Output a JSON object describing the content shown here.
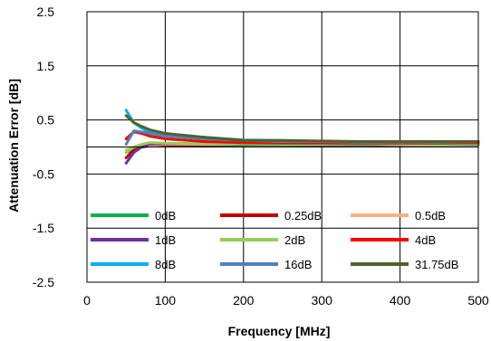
{
  "chart_data": {
    "type": "line",
    "xlabel": "Frequency [MHz]",
    "ylabel": "Attenuation Error [dB]",
    "xlim": [
      0,
      500
    ],
    "ylim": [
      -2.5,
      2.5
    ],
    "x_ticks": [
      0,
      100,
      200,
      300,
      400,
      500
    ],
    "y_ticks": [
      -2.5,
      -1.5,
      -0.5,
      0.5,
      1.5,
      2.5
    ],
    "grid": true,
    "legend_placement": "bottom, inside plot, 3 columns",
    "series": [
      {
        "name": "0dB",
        "color": "#00B050",
        "x": [
          50,
          60,
          70,
          80,
          100,
          150,
          200,
          250,
          300,
          350,
          400,
          450,
          500
        ],
        "y": [
          -0.1,
          -0.05,
          0.0,
          0.02,
          0.03,
          0.03,
          0.03,
          0.03,
          0.03,
          0.03,
          0.04,
          0.04,
          0.04
        ]
      },
      {
        "name": "0.25dB",
        "color": "#C00000",
        "x": [
          50,
          60,
          70,
          80,
          100,
          150,
          200,
          250,
          300,
          350,
          400,
          450,
          500
        ],
        "y": [
          -0.2,
          -0.05,
          0.0,
          0.02,
          0.03,
          0.04,
          0.05,
          0.05,
          0.05,
          0.06,
          0.06,
          0.06,
          0.07
        ]
      },
      {
        "name": "0.5dB",
        "color": "#F4B183",
        "x": [
          50,
          60,
          70,
          80,
          100,
          150,
          200,
          250,
          300,
          350,
          400,
          450,
          500
        ],
        "y": [
          -0.05,
          0.0,
          0.03,
          0.02,
          0.05,
          0.05,
          0.05,
          0.06,
          0.06,
          0.06,
          0.07,
          0.07,
          0.07
        ]
      },
      {
        "name": "1dB",
        "color": "#7030A0",
        "x": [
          50,
          60,
          70,
          80,
          100,
          150,
          200,
          250,
          300,
          350,
          400,
          450,
          500
        ],
        "y": [
          -0.3,
          -0.1,
          0.0,
          0.05,
          0.06,
          0.06,
          0.05,
          0.05,
          0.04,
          0.05,
          0.04,
          0.05,
          0.05
        ]
      },
      {
        "name": "2dB",
        "color": "#92D050",
        "x": [
          50,
          60,
          70,
          80,
          100,
          150,
          200,
          250,
          300,
          350,
          400,
          450,
          500
        ],
        "y": [
          -0.1,
          0.0,
          0.05,
          0.08,
          0.07,
          0.06,
          0.06,
          0.05,
          0.05,
          0.06,
          0.05,
          0.05,
          0.06
        ]
      },
      {
        "name": "4dB",
        "color": "#FF0000",
        "x": [
          50,
          60,
          70,
          80,
          100,
          150,
          200,
          250,
          300,
          350,
          400,
          450,
          500
        ],
        "y": [
          0.15,
          0.28,
          0.25,
          0.2,
          0.15,
          0.1,
          0.08,
          0.07,
          0.07,
          0.07,
          0.07,
          0.07,
          0.08
        ]
      },
      {
        "name": "8dB",
        "color": "#00B0F0",
        "x": [
          50,
          60,
          70,
          80,
          100,
          150,
          200,
          250,
          300,
          350,
          400,
          450,
          500
        ],
        "y": [
          0.68,
          0.45,
          0.35,
          0.28,
          0.22,
          0.18,
          0.13,
          0.12,
          0.1,
          0.09,
          0.09,
          0.09,
          0.1
        ]
      },
      {
        "name": "16dB",
        "color": "#4F81BD",
        "x": [
          50,
          60,
          70,
          80,
          100,
          150,
          200,
          250,
          300,
          350,
          400,
          450,
          500
        ],
        "y": [
          0.05,
          0.3,
          0.28,
          0.25,
          0.2,
          0.15,
          0.12,
          0.1,
          0.1,
          0.1,
          0.09,
          0.1,
          0.1
        ]
      },
      {
        "name": "31.75dB",
        "color": "#4F6228",
        "x": [
          50,
          60,
          70,
          80,
          100,
          150,
          200,
          250,
          300,
          350,
          400,
          450,
          500
        ],
        "y": [
          0.58,
          0.45,
          0.38,
          0.32,
          0.25,
          0.18,
          0.12,
          0.12,
          0.11,
          0.1,
          0.1,
          0.1,
          0.1
        ]
      }
    ]
  }
}
